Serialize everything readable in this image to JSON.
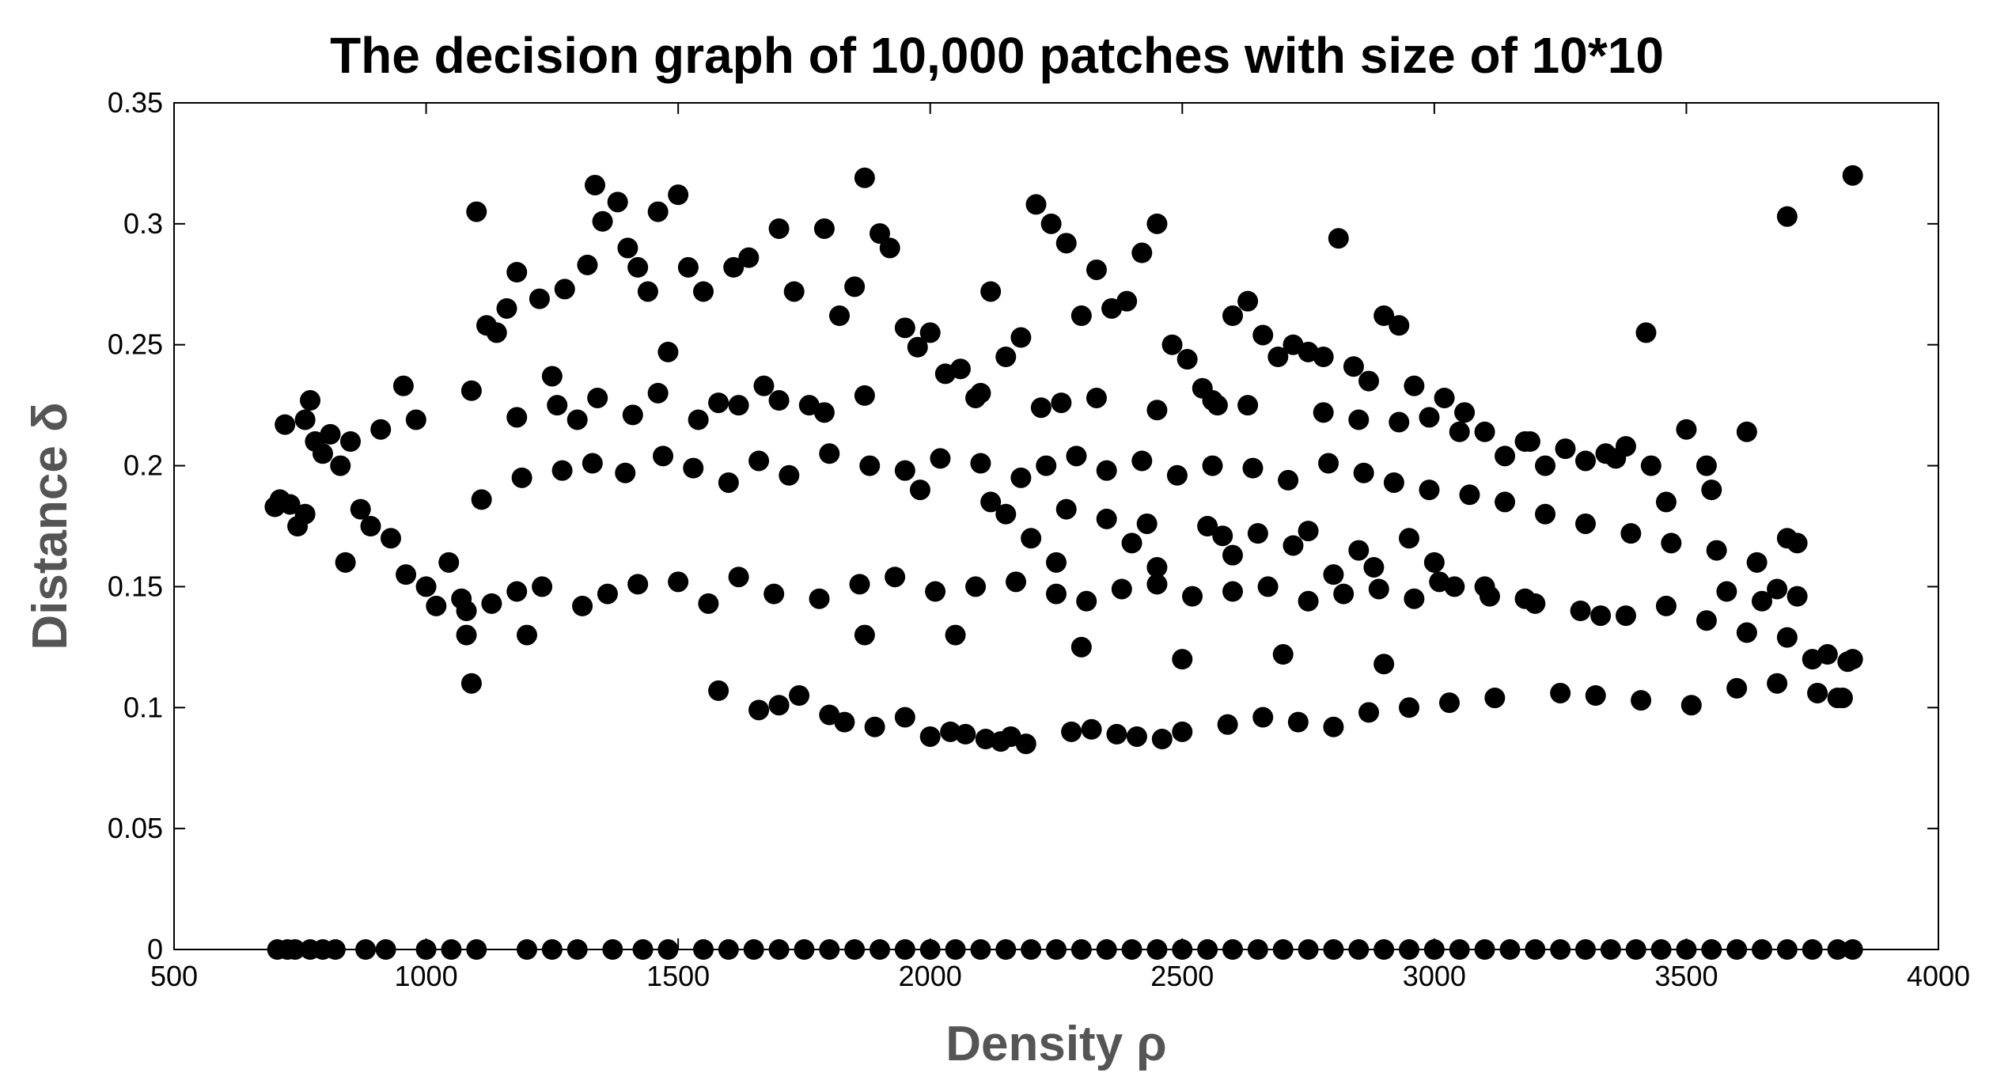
{
  "chart_data": {
    "type": "scatter",
    "title": "The decision graph of 10,000 patches with size of 10*10",
    "xlabel": "Density ρ",
    "ylabel": "Distance δ",
    "xlim": [
      500,
      4000
    ],
    "ylim": [
      0,
      0.35
    ],
    "xticks": [
      "500",
      "1000",
      "1500",
      "2000",
      "2500",
      "3000",
      "3500",
      "4000"
    ],
    "yticks": [
      "0",
      "0.05",
      "0.1",
      "0.15",
      "0.2",
      "0.25",
      "0.3",
      "0.35"
    ],
    "grid": false,
    "legend": "none",
    "marker_color": "#000000",
    "series": [
      {
        "x": [
          700,
          710,
          720,
          730,
          745,
          760,
          770,
          780,
          795,
          810,
          830,
          850,
          870,
          890,
          910,
          930,
          955,
          980,
          1000,
          1020,
          1045,
          1070,
          1080,
          1090,
          1100,
          1110,
          1120,
          1140,
          1160,
          1180,
          1200,
          1225,
          1250,
          1275,
          1300,
          1320,
          1335,
          1350,
          1380,
          1400,
          1420,
          1440,
          1460,
          1480,
          1500,
          1520,
          1550,
          1580,
          1610,
          1640,
          1670,
          1700,
          1730,
          1760,
          1790,
          1820,
          1850,
          1870,
          1900,
          1920,
          1950,
          1975,
          2000,
          2030,
          2060,
          2090,
          2120,
          2150,
          2180,
          2210,
          2240,
          2270,
          2300,
          2330,
          2360,
          2390,
          2420,
          2450,
          2480,
          2510,
          2540,
          2570,
          2600,
          2630,
          2660,
          2690,
          2720,
          2750,
          2780,
          2810,
          2840,
          2870,
          2900,
          2930,
          2960,
          2990,
          3020,
          3060,
          3100,
          3140,
          3180,
          3220,
          3260,
          3300,
          3340,
          3380,
          3420,
          3460,
          3500,
          3540,
          3580,
          3620,
          3650,
          3680,
          3700,
          3720,
          3750,
          3780,
          3800,
          3820,
          3830,
          760,
          840,
          960,
          1080,
          1130,
          1180,
          1230,
          1310,
          1360,
          1420,
          1500,
          1560,
          1620,
          1690,
          1780,
          1860,
          1930,
          2010,
          2090,
          2170,
          2250,
          2310,
          2380,
          2450,
          2520,
          2600,
          2670,
          2750,
          2820,
          2890,
          2960,
          3040,
          3110,
          3200,
          3290,
          3380,
          3460,
          3540,
          3620,
          3700,
          1190,
          1270,
          1330,
          1395,
          1470,
          1530,
          1600,
          1660,
          1720,
          1800,
          1880,
          1950,
          2020,
          2100,
          2180,
          2230,
          2290,
          2350,
          2420,
          2490,
          2560,
          2640,
          2710,
          2790,
          2860,
          2920,
          2990,
          3070,
          3140,
          3220,
          3300,
          3390,
          3470,
          3560,
          3640,
          1090,
          1180,
          1260,
          1340,
          1410,
          1460,
          1540,
          1620,
          1700,
          1790,
          1870,
          2100,
          2220,
          2260,
          2330,
          2450,
          2560,
          2630,
          2780,
          2850,
          2930,
          3050,
          3190,
          3360,
          3430,
          3550,
          3700,
          3720,
          3830,
          1870,
          1580,
          1660,
          1700,
          1740,
          1800,
          1830,
          1890,
          1950,
          2000,
          2040,
          2070,
          2110,
          2140,
          2160,
          2190,
          2280,
          2320,
          2370,
          2410,
          2460,
          2500,
          2590,
          2660,
          2730,
          2800,
          2870,
          2950,
          3030,
          3120,
          3250,
          3320,
          3410,
          3510,
          3600,
          3680,
          3760,
          3810,
          705,
          725,
          740,
          770,
          795,
          820,
          880,
          920,
          1000,
          1050,
          1100,
          1200,
          1250,
          1300,
          1370,
          1430,
          1480,
          1550,
          1600,
          1650,
          1700,
          1750,
          1800,
          1850,
          1900,
          1950,
          2000,
          2050,
          2100,
          2150,
          2200,
          2250,
          2300,
          2350,
          2400,
          2450,
          2500,
          2550,
          2600,
          2650,
          2700,
          2750,
          2800,
          2850,
          2900,
          2950,
          3000,
          3050,
          3100,
          3150,
          3200,
          3250,
          3300,
          3350,
          3400,
          3450,
          3500,
          3550,
          3600,
          3650,
          3700,
          3750,
          3800,
          3830,
          2200,
          2400,
          2650,
          2850,
          3000,
          2150,
          2350,
          2550,
          2750,
          2950,
          2250,
          2450,
          2600,
          2800,
          3100,
          2050,
          2300,
          2500,
          2700,
          2900,
          1980,
          2120,
          2270,
          2430,
          2580,
          2720,
          2880,
          3010,
          3180,
          3330
        ],
        "y": [
          0.183,
          0.186,
          0.217,
          0.184,
          0.175,
          0.219,
          0.227,
          0.21,
          0.205,
          0.213,
          0.2,
          0.21,
          0.182,
          0.175,
          0.215,
          0.17,
          0.233,
          0.219,
          0.15,
          0.142,
          0.16,
          0.145,
          0.13,
          0.11,
          0.305,
          0.186,
          0.258,
          0.255,
          0.265,
          0.28,
          0.13,
          0.269,
          0.237,
          0.273,
          0.219,
          0.283,
          0.316,
          0.301,
          0.309,
          0.29,
          0.282,
          0.272,
          0.305,
          0.247,
          0.312,
          0.282,
          0.272,
          0.226,
          0.282,
          0.286,
          0.233,
          0.298,
          0.272,
          0.225,
          0.298,
          0.262,
          0.274,
          0.319,
          0.296,
          0.29,
          0.257,
          0.249,
          0.255,
          0.238,
          0.24,
          0.228,
          0.272,
          0.245,
          0.253,
          0.308,
          0.3,
          0.292,
          0.262,
          0.281,
          0.265,
          0.268,
          0.288,
          0.3,
          0.25,
          0.244,
          0.232,
          0.225,
          0.262,
          0.268,
          0.254,
          0.245,
          0.25,
          0.247,
          0.245,
          0.294,
          0.241,
          0.235,
          0.262,
          0.258,
          0.233,
          0.22,
          0.228,
          0.222,
          0.214,
          0.204,
          0.21,
          0.2,
          0.207,
          0.202,
          0.205,
          0.208,
          0.255,
          0.185,
          0.215,
          0.2,
          0.148,
          0.214,
          0.144,
          0.149,
          0.17,
          0.146,
          0.12,
          0.122,
          0.104,
          0.119,
          0.32,
          0.18,
          0.16,
          0.155,
          0.14,
          0.143,
          0.148,
          0.15,
          0.142,
          0.147,
          0.151,
          0.152,
          0.143,
          0.154,
          0.147,
          0.145,
          0.151,
          0.154,
          0.148,
          0.15,
          0.152,
          0.147,
          0.144,
          0.149,
          0.151,
          0.146,
          0.148,
          0.15,
          0.144,
          0.147,
          0.149,
          0.145,
          0.15,
          0.146,
          0.143,
          0.14,
          0.138,
          0.142,
          0.136,
          0.131,
          0.129,
          0.195,
          0.198,
          0.201,
          0.197,
          0.204,
          0.199,
          0.193,
          0.202,
          0.196,
          0.205,
          0.2,
          0.198,
          0.203,
          0.201,
          0.195,
          0.2,
          0.204,
          0.198,
          0.202,
          0.196,
          0.2,
          0.199,
          0.194,
          0.201,
          0.197,
          0.193,
          0.19,
          0.188,
          0.185,
          0.18,
          0.176,
          0.172,
          0.168,
          0.165,
          0.16,
          0.231,
          0.22,
          0.225,
          0.228,
          0.221,
          0.23,
          0.219,
          0.225,
          0.227,
          0.222,
          0.229,
          0.23,
          0.224,
          0.226,
          0.228,
          0.223,
          0.227,
          0.225,
          0.222,
          0.219,
          0.218,
          0.214,
          0.21,
          0.203,
          0.2,
          0.19,
          0.303,
          0.168,
          0.12,
          0.13,
          0.107,
          0.099,
          0.101,
          0.105,
          0.097,
          0.094,
          0.092,
          0.096,
          0.088,
          0.09,
          0.089,
          0.087,
          0.086,
          0.088,
          0.085,
          0.09,
          0.091,
          0.089,
          0.088,
          0.087,
          0.09,
          0.093,
          0.096,
          0.094,
          0.092,
          0.098,
          0.1,
          0.102,
          0.104,
          0.106,
          0.105,
          0.103,
          0.101,
          0.108,
          0.11,
          0.106,
          0.104,
          0,
          0,
          0,
          0,
          0,
          0,
          0,
          0,
          0,
          0,
          0,
          0,
          0,
          0,
          0,
          0,
          0,
          0,
          0,
          0,
          0,
          0,
          0,
          0,
          0,
          0,
          0,
          0,
          0,
          0,
          0,
          0,
          0,
          0,
          0,
          0,
          0,
          0,
          0,
          0,
          0,
          0,
          0,
          0,
          0,
          0,
          0,
          0,
          0,
          0,
          0,
          0,
          0,
          0,
          0,
          0,
          0,
          0,
          0,
          0,
          0,
          0,
          0,
          0,
          0.17,
          0.168,
          0.172,
          0.165,
          0.16,
          0.18,
          0.178,
          0.175,
          0.173,
          0.17,
          0.16,
          0.158,
          0.163,
          0.155,
          0.15,
          0.13,
          0.125,
          0.12,
          0.122,
          0.118,
          0.19,
          0.185,
          0.182,
          0.176,
          0.171,
          0.167,
          0.158,
          0.152,
          0.145,
          0.138
        ]
      }
    ]
  }
}
